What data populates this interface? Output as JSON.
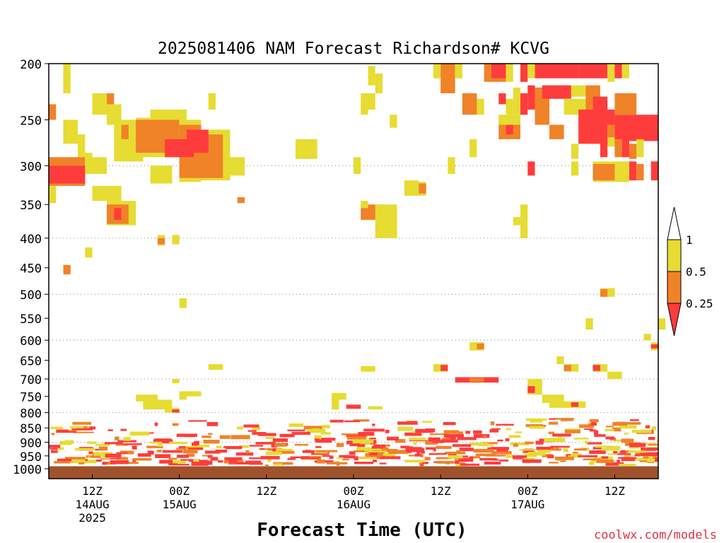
{
  "chart_data": {
    "type": "heatmap",
    "title": "2025081406 NAM Forecast Richardson# KCVG",
    "xlabel": "Forecast Time (UTC)",
    "ylabel": "",
    "credit": "coolwx.com/models",
    "y_scale": "log-pressure",
    "y_unit": "hPa",
    "ylim": [
      1000,
      200
    ],
    "xlim": [
      "2025-08-14T06:00Z",
      "2025-08-17T18:00Z"
    ],
    "y_ticks": [
      200,
      250,
      300,
      350,
      400,
      450,
      500,
      550,
      600,
      650,
      700,
      750,
      800,
      850,
      900,
      950,
      1000
    ],
    "y_tick_labels": [
      "200",
      "250",
      "300",
      "350",
      "400",
      "450",
      "500",
      "550",
      "600",
      "650",
      "700",
      "750",
      "800",
      "850",
      "900",
      "950",
      "1000"
    ],
    "x_ticks": [
      {
        "t": "2025-08-14T12:00Z",
        "label": "12Z",
        "date": "14AUG",
        "year": "2025"
      },
      {
        "t": "2025-08-15T00:00Z",
        "label": "00Z",
        "date": "15AUG",
        "year": ""
      },
      {
        "t": "2025-08-15T12:00Z",
        "label": "12Z",
        "date": "",
        "year": ""
      },
      {
        "t": "2025-08-16T00:00Z",
        "label": "00Z",
        "date": "16AUG",
        "year": ""
      },
      {
        "t": "2025-08-16T12:00Z",
        "label": "12Z",
        "date": "",
        "year": ""
      },
      {
        "t": "2025-08-17T00:00Z",
        "label": "00Z",
        "date": "17AUG",
        "year": ""
      },
      {
        "t": "2025-08-17T12:00Z",
        "label": "12Z",
        "date": "",
        "year": ""
      }
    ],
    "grid_levels_dotted": [
      300,
      400,
      500,
      600,
      700,
      800,
      900,
      1000
    ],
    "legend": {
      "placement": "right",
      "labels": [
        "1",
        "0.5",
        "0.25"
      ],
      "bins": [
        {
          "range": "0.5-1",
          "color": "#e6dc32"
        },
        {
          "range": "0.25-0.5",
          "color": "#f08228"
        },
        {
          "range": "<0.25",
          "color": "#ff3c3c"
        },
        {
          "range": ">1",
          "color": "#ffffff"
        }
      ]
    },
    "ground_color": "#a0522d",
    "ground_top_hPa": 990,
    "classes": {
      "Y": "0.5-1",
      "O": "0.25-0.5",
      "R": "<0.25"
    },
    "cells": [
      [
        "2025-08-14T08:00Z",
        "2025-08-14T09:00Z",
        200,
        225,
        "Y"
      ],
      [
        "2025-08-14T06:00Z",
        "2025-08-14T07:00Z",
        235,
        250,
        "O"
      ],
      [
        "2025-08-14T12:00Z",
        "2025-08-14T14:00Z",
        225,
        245,
        "Y"
      ],
      [
        "2025-08-14T14:00Z",
        "2025-08-14T15:00Z",
        225,
        245,
        "O"
      ],
      [
        "2025-08-14T14:00Z",
        "2025-08-14T16:00Z",
        235,
        255,
        "Y"
      ],
      [
        "2025-08-14T08:00Z",
        "2025-08-14T10:00Z",
        250,
        275,
        "Y"
      ],
      [
        "2025-08-14T10:00Z",
        "2025-08-14T11:00Z",
        265,
        290,
        "Y"
      ],
      [
        "2025-08-14T11:00Z",
        "2025-08-14T12:00Z",
        285,
        300,
        "Y"
      ],
      [
        "2025-08-14T06:00Z",
        "2025-08-14T11:00Z",
        290,
        325,
        "O"
      ],
      [
        "2025-08-14T06:00Z",
        "2025-08-14T11:00Z",
        300,
        322,
        "R"
      ],
      [
        "2025-08-14T11:00Z",
        "2025-08-14T14:00Z",
        290,
        310,
        "Y"
      ],
      [
        "2025-08-14T06:00Z",
        "2025-08-14T07:00Z",
        325,
        348,
        "Y"
      ],
      [
        "2025-08-14T12:00Z",
        "2025-08-14T16:00Z",
        325,
        345,
        "Y"
      ],
      [
        "2025-08-14T14:00Z",
        "2025-08-14T18:00Z",
        345,
        380,
        "Y"
      ],
      [
        "2025-08-14T14:00Z",
        "2025-08-14T17:00Z",
        350,
        378,
        "O"
      ],
      [
        "2025-08-14T15:00Z",
        "2025-08-14T16:00Z",
        355,
        372,
        "R"
      ],
      [
        "2025-08-14T15:00Z",
        "2025-08-14T19:00Z",
        250,
        295,
        "Y"
      ],
      [
        "2025-08-14T16:00Z",
        "2025-08-14T17:00Z",
        255,
        270,
        "O"
      ],
      [
        "2025-08-14T18:00Z",
        "2025-08-15T00:00Z",
        248,
        290,
        "Y"
      ],
      [
        "2025-08-14T18:00Z",
        "2025-08-15T00:00Z",
        250,
        285,
        "O"
      ],
      [
        "2025-08-14T20:00Z",
        "2025-08-15T01:00Z",
        240,
        250,
        "Y"
      ],
      [
        "2025-08-15T00:00Z",
        "2025-08-15T03:00Z",
        250,
        320,
        "Y"
      ],
      [
        "2025-08-15T00:00Z",
        "2025-08-15T03:00Z",
        255,
        315,
        "O"
      ],
      [
        "2025-08-15T03:00Z",
        "2025-08-15T07:00Z",
        260,
        318,
        "Y"
      ],
      [
        "2025-08-15T03:00Z",
        "2025-08-15T06:00Z",
        265,
        315,
        "O"
      ],
      [
        "2025-08-14T22:00Z",
        "2025-08-15T02:00Z",
        270,
        290,
        "R"
      ],
      [
        "2025-08-15T01:00Z",
        "2025-08-15T04:00Z",
        260,
        285,
        "R"
      ],
      [
        "2025-08-15T07:00Z",
        "2025-08-15T09:00Z",
        290,
        312,
        "Y"
      ],
      [
        "2025-08-14T20:00Z",
        "2025-08-14T23:00Z",
        300,
        322,
        "Y"
      ],
      [
        "2025-08-14T21:00Z",
        "2025-08-14T22:00Z",
        395,
        412,
        "Y"
      ],
      [
        "2025-08-14T21:00Z",
        "2025-08-14T22:00Z",
        400,
        410,
        "O"
      ],
      [
        "2025-08-14T23:00Z",
        "2025-08-15T00:00Z",
        395,
        410,
        "Y"
      ],
      [
        "2025-08-14T08:00Z",
        "2025-08-14T09:00Z",
        445,
        462,
        "O"
      ],
      [
        "2025-08-14T11:00Z",
        "2025-08-14T12:00Z",
        415,
        432,
        "Y"
      ],
      [
        "2025-08-15T00:00Z",
        "2025-08-15T01:00Z",
        508,
        528,
        "Y"
      ],
      [
        "2025-08-15T04:00Z",
        "2025-08-15T05:00Z",
        225,
        240,
        "Y"
      ],
      [
        "2025-08-15T08:00Z",
        "2025-08-15T09:00Z",
        340,
        348,
        "O"
      ],
      [
        "2025-08-15T16:00Z",
        "2025-08-15T19:00Z",
        270,
        292,
        "Y"
      ],
      [
        "2025-08-16T00:00Z",
        "2025-08-16T01:00Z",
        290,
        310,
        "Y"
      ],
      [
        "2025-08-16T02:00Z",
        "2025-08-16T03:00Z",
        202,
        218,
        "Y"
      ],
      [
        "2025-08-16T03:00Z",
        "2025-08-16T04:00Z",
        208,
        225,
        "Y"
      ],
      [
        "2025-08-16T01:00Z",
        "2025-08-16T03:00Z",
        225,
        240,
        "Y"
      ],
      [
        "2025-08-16T01:00Z",
        "2025-08-16T02:00Z",
        235,
        245,
        "Y"
      ],
      [
        "2025-08-16T05:00Z",
        "2025-08-16T06:00Z",
        245,
        258,
        "Y"
      ],
      [
        "2025-08-16T07:00Z",
        "2025-08-16T09:00Z",
        318,
        338,
        "Y"
      ],
      [
        "2025-08-16T09:00Z",
        "2025-08-16T10:00Z",
        320,
        338,
        "Y"
      ],
      [
        "2025-08-16T09:00Z",
        "2025-08-16T10:00Z",
        322,
        335,
        "O"
      ],
      [
        "2025-08-16T01:00Z",
        "2025-08-16T04:00Z",
        350,
        372,
        "O"
      ],
      [
        "2025-08-16T01:00Z",
        "2025-08-16T02:00Z",
        345,
        355,
        "Y"
      ],
      [
        "2025-08-16T03:00Z",
        "2025-08-16T06:00Z",
        350,
        400,
        "Y"
      ],
      [
        "2025-08-16T12:00Z",
        "2025-08-16T14:00Z",
        200,
        225,
        "O"
      ],
      [
        "2025-08-16T11:00Z",
        "2025-08-16T12:00Z",
        200,
        212,
        "Y"
      ],
      [
        "2025-08-16T14:00Z",
        "2025-08-16T15:00Z",
        200,
        212,
        "Y"
      ],
      [
        "2025-08-16T15:00Z",
        "2025-08-16T17:00Z",
        225,
        245,
        "O"
      ],
      [
        "2025-08-16T17:00Z",
        "2025-08-16T18:00Z",
        230,
        245,
        "Y"
      ],
      [
        "2025-08-16T16:00Z",
        "2025-08-16T17:00Z",
        270,
        290,
        "Y"
      ],
      [
        "2025-08-16T13:00Z",
        "2025-08-16T14:00Z",
        290,
        310,
        "Y"
      ],
      [
        "2025-08-16T18:00Z",
        "2025-08-16T21:00Z",
        200,
        215,
        "O"
      ],
      [
        "2025-08-16T19:00Z",
        "2025-08-16T21:00Z",
        200,
        212,
        "R"
      ],
      [
        "2025-08-16T21:00Z",
        "2025-08-16T22:00Z",
        200,
        215,
        "Y"
      ],
      [
        "2025-08-16T22:00Z",
        "2025-08-16T23:00Z",
        220,
        245,
        "Y"
      ],
      [
        "2025-08-16T21:00Z",
        "2025-08-16T22:00Z",
        230,
        245,
        "Y"
      ],
      [
        "2025-08-16T20:00Z",
        "2025-08-16T21:00Z",
        225,
        235,
        "R"
      ],
      [
        "2025-08-16T23:00Z",
        "2025-08-17T00:00Z",
        200,
        215,
        "R"
      ],
      [
        "2025-08-16T23:00Z",
        "2025-08-17T00:00Z",
        225,
        245,
        "R"
      ],
      [
        "2025-08-16T20:00Z",
        "2025-08-16T23:00Z",
        250,
        270,
        "O"
      ],
      [
        "2025-08-16T21:00Z",
        "2025-08-16T22:00Z",
        252,
        265,
        "R"
      ],
      [
        "2025-08-16T20:00Z",
        "2025-08-16T23:00Z",
        245,
        255,
        "Y"
      ],
      [
        "2025-08-17T01:00Z",
        "2025-08-17T07:00Z",
        200,
        212,
        "R"
      ],
      [
        "2025-08-17T00:00Z",
        "2025-08-17T01:00Z",
        200,
        212,
        "Y"
      ],
      [
        "2025-08-17T07:00Z",
        "2025-08-17T11:00Z",
        200,
        212,
        "R"
      ],
      [
        "2025-08-17T11:00Z",
        "2025-08-17T12:00Z",
        200,
        215,
        "Y"
      ],
      [
        "2025-08-17T12:00Z",
        "2025-08-17T13:00Z",
        200,
        212,
        "R"
      ],
      [
        "2025-08-17T13:00Z",
        "2025-08-17T14:00Z",
        200,
        212,
        "Y"
      ],
      [
        "2025-08-17T01:00Z",
        "2025-08-17T03:00Z",
        220,
        255,
        "O"
      ],
      [
        "2025-08-17T00:00Z",
        "2025-08-17T01:00Z",
        218,
        240,
        "R"
      ],
      [
        "2025-08-17T02:00Z",
        "2025-08-17T06:00Z",
        218,
        230,
        "R"
      ],
      [
        "2025-08-17T06:00Z",
        "2025-08-17T08:00Z",
        218,
        228,
        "Y"
      ],
      [
        "2025-08-17T03:00Z",
        "2025-08-17T05:00Z",
        255,
        270,
        "O"
      ],
      [
        "2025-08-17T05:00Z",
        "2025-08-17T08:00Z",
        230,
        245,
        "Y"
      ],
      [
        "2025-08-17T08:00Z",
        "2025-08-17T10:00Z",
        218,
        245,
        "O"
      ],
      [
        "2025-08-17T09:00Z",
        "2025-08-17T11:00Z",
        228,
        250,
        "R"
      ],
      [
        "2025-08-17T07:00Z",
        "2025-08-17T12:00Z",
        240,
        275,
        "R"
      ],
      [
        "2025-08-17T12:00Z",
        "2025-08-17T18:00Z",
        245,
        272,
        "R"
      ],
      [
        "2025-08-17T11:00Z",
        "2025-08-17T12:00Z",
        255,
        278,
        "Y"
      ],
      [
        "2025-08-17T12:00Z",
        "2025-08-17T13:00Z",
        270,
        290,
        "O"
      ],
      [
        "2025-08-17T13:00Z",
        "2025-08-17T14:00Z",
        268,
        290,
        "R"
      ],
      [
        "2025-08-17T12:00Z",
        "2025-08-17T15:00Z",
        225,
        245,
        "O"
      ],
      [
        "2025-08-17T15:00Z",
        "2025-08-17T16:00Z",
        270,
        290,
        "Y"
      ],
      [
        "2025-08-17T14:00Z",
        "2025-08-17T15:00Z",
        275,
        292,
        "O"
      ],
      [
        "2025-08-17T11:00Z",
        "2025-08-17T12:00Z",
        255,
        268,
        "O"
      ],
      [
        "2025-08-17T06:00Z",
        "2025-08-17T07:00Z",
        275,
        292,
        "Y"
      ],
      [
        "2025-08-17T10:00Z",
        "2025-08-17T11:00Z",
        270,
        290,
        "R"
      ],
      [
        "2025-08-17T00:00Z",
        "2025-08-17T01:00Z",
        295,
        312,
        "R"
      ],
      [
        "2025-08-17T06:00Z",
        "2025-08-17T07:00Z",
        295,
        312,
        "Y"
      ],
      [
        "2025-08-17T09:00Z",
        "2025-08-17T14:00Z",
        295,
        320,
        "Y"
      ],
      [
        "2025-08-17T09:00Z",
        "2025-08-17T12:00Z",
        298,
        318,
        "O"
      ],
      [
        "2025-08-17T14:00Z",
        "2025-08-17T15:00Z",
        295,
        318,
        "R"
      ],
      [
        "2025-08-17T15:00Z",
        "2025-08-17T16:00Z",
        298,
        318,
        "O"
      ],
      [
        "2025-08-17T17:00Z",
        "2025-08-17T18:00Z",
        295,
        318,
        "R"
      ],
      [
        "2025-08-16T23:00Z",
        "2025-08-17T00:00Z",
        350,
        400,
        "Y"
      ],
      [
        "2025-08-16T22:00Z",
        "2025-08-16T23:00Z",
        368,
        380,
        "Y"
      ],
      [
        "2025-08-17T10:00Z",
        "2025-08-17T12:00Z",
        488,
        505,
        "Y"
      ],
      [
        "2025-08-17T10:00Z",
        "2025-08-17T11:00Z",
        490,
        505,
        "O"
      ],
      [
        "2025-08-17T08:00Z",
        "2025-08-17T09:00Z",
        550,
        575,
        "Y"
      ],
      [
        "2025-08-17T16:00Z",
        "2025-08-17T17:00Z",
        585,
        600,
        "Y"
      ],
      [
        "2025-08-17T18:00Z",
        "2025-08-17T19:00Z",
        550,
        575,
        "Y"
      ],
      [
        "2025-08-17T17:00Z",
        "2025-08-17T18:00Z",
        605,
        625,
        "Y"
      ],
      [
        "2025-08-17T17:00Z",
        "2025-08-17T18:00Z",
        610,
        620,
        "R"
      ],
      [
        "2025-08-16T16:00Z",
        "2025-08-16T18:00Z",
        605,
        625,
        "Y"
      ],
      [
        "2025-08-16T17:00Z",
        "2025-08-16T18:00Z",
        608,
        622,
        "O"
      ],
      [
        "2025-08-17T04:00Z",
        "2025-08-17T05:00Z",
        640,
        660,
        "Y"
      ],
      [
        "2025-08-17T05:00Z",
        "2025-08-17T07:00Z",
        660,
        680,
        "Y"
      ],
      [
        "2025-08-17T05:00Z",
        "2025-08-17T06:00Z",
        662,
        678,
        "O"
      ],
      [
        "2025-08-17T09:00Z",
        "2025-08-17T11:00Z",
        660,
        680,
        "Y"
      ],
      [
        "2025-08-17T09:00Z",
        "2025-08-17T10:00Z",
        662,
        678,
        "R"
      ],
      [
        "2025-08-17T11:00Z",
        "2025-08-17T13:00Z",
        680,
        700,
        "Y"
      ],
      [
        "2025-08-16T11:00Z",
        "2025-08-16T13:00Z",
        660,
        680,
        "Y"
      ],
      [
        "2025-08-16T12:00Z",
        "2025-08-16T13:00Z",
        662,
        678,
        "R"
      ],
      [
        "2025-08-16T14:00Z",
        "2025-08-16T20:00Z",
        695,
        710,
        "R"
      ],
      [
        "2025-08-16T16:00Z",
        "2025-08-16T18:00Z",
        697,
        708,
        "O"
      ],
      [
        "2025-08-17T00:00Z",
        "2025-08-17T02:00Z",
        700,
        745,
        "Y"
      ],
      [
        "2025-08-17T00:00Z",
        "2025-08-17T01:00Z",
        720,
        740,
        "R"
      ],
      [
        "2025-08-17T02:00Z",
        "2025-08-17T05:00Z",
        745,
        770,
        "Y"
      ],
      [
        "2025-08-17T03:00Z",
        "2025-08-17T08:00Z",
        765,
        785,
        "Y"
      ],
      [
        "2025-08-17T06:00Z",
        "2025-08-17T07:00Z",
        768,
        782,
        "R"
      ],
      [
        "2025-08-16T01:00Z",
        "2025-08-16T03:00Z",
        665,
        680,
        "Y"
      ],
      [
        "2025-08-15T04:00Z",
        "2025-08-15T06:00Z",
        660,
        675,
        "Y"
      ],
      [
        "2025-08-14T23:00Z",
        "2025-08-15T00:00Z",
        700,
        712,
        "Y"
      ],
      [
        "2025-08-14T18:00Z",
        "2025-08-14T21:00Z",
        745,
        765,
        "Y"
      ],
      [
        "2025-08-14T19:00Z",
        "2025-08-14T23:00Z",
        760,
        790,
        "Y"
      ],
      [
        "2025-08-14T22:00Z",
        "2025-08-15T00:00Z",
        785,
        800,
        "Y"
      ],
      [
        "2025-08-14T23:00Z",
        "2025-08-15T00:00Z",
        790,
        800,
        "R"
      ],
      [
        "2025-08-15T00:00Z",
        "2025-08-15T03:00Z",
        735,
        750,
        "Y"
      ],
      [
        "2025-08-15T00:00Z",
        "2025-08-15T01:00Z",
        745,
        760,
        "Y"
      ],
      [
        "2025-08-15T21:00Z",
        "2025-08-15T23:00Z",
        740,
        760,
        "Y"
      ],
      [
        "2025-08-15T21:00Z",
        "2025-08-15T22:00Z",
        755,
        790,
        "Y"
      ],
      [
        "2025-08-15T23:00Z",
        "2025-08-16T01:00Z",
        775,
        788,
        "R"
      ],
      [
        "2025-08-16T02:00Z",
        "2025-08-16T04:00Z",
        780,
        790,
        "Y"
      ]
    ],
    "ground_speckle_note": "dense fine-scale Ri<0.25 / 0.25-0.5 / 0.5-1 features between 800 and 990 hPa throughout the forecast period"
  }
}
